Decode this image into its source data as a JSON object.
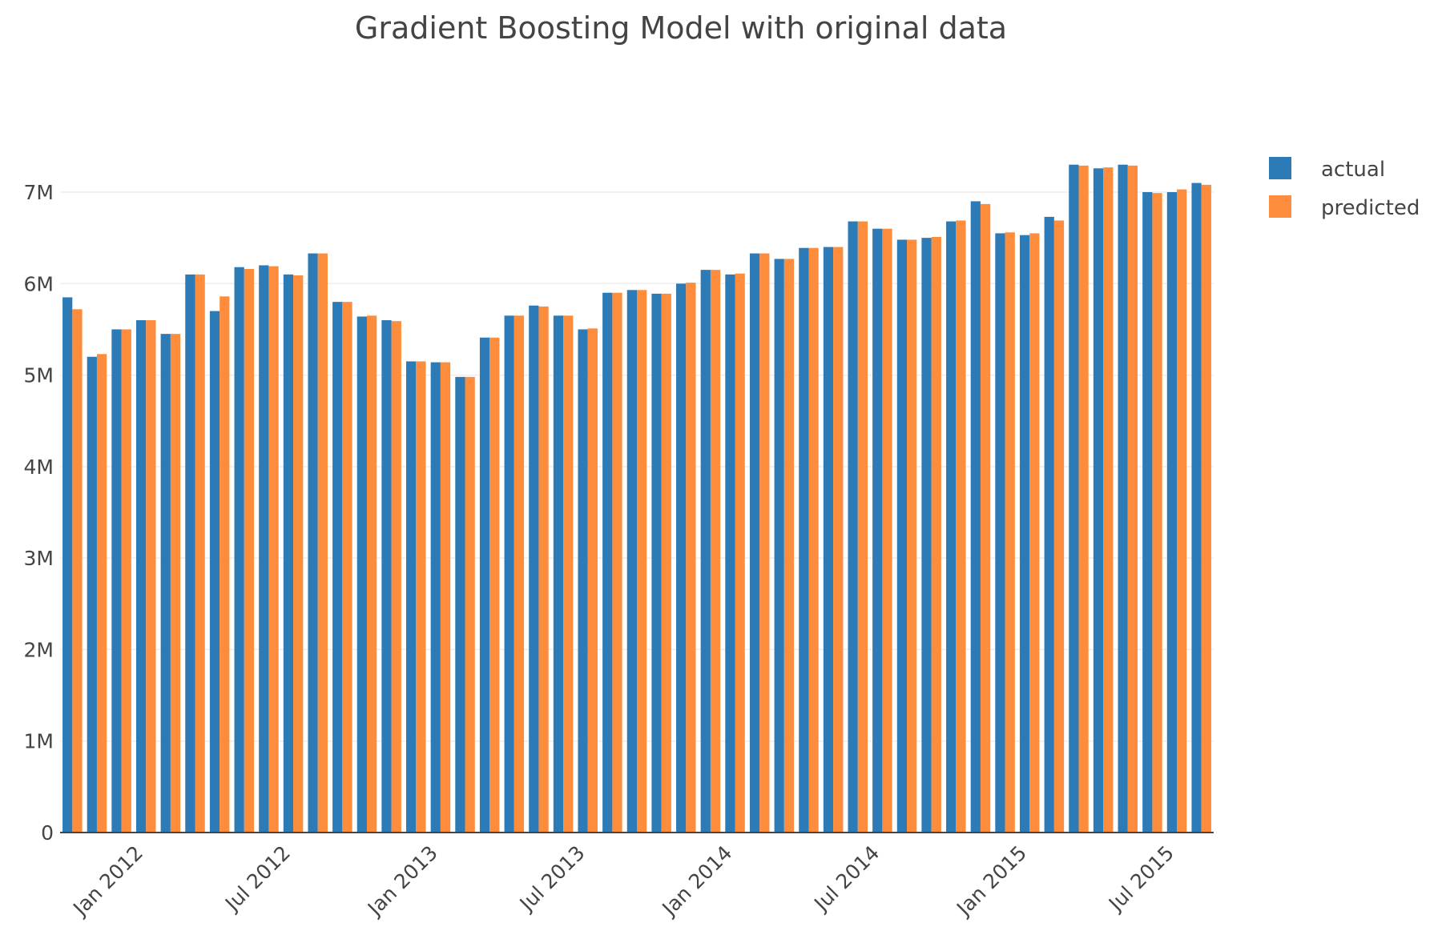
{
  "colors": {
    "actual": "#2c7bb6",
    "predicted": "#fd8d3c",
    "text": "#444444",
    "grid": "#eeeeee",
    "background": "#ffffff"
  },
  "chart_data": {
    "type": "bar",
    "title": "Gradient Boosting Model with original data",
    "xlabel": "",
    "ylabel": "",
    "x_start": "2011-10",
    "x_end": "2015-08",
    "categories": [
      "2011-10",
      "2011-11",
      "2011-12",
      "2012-01",
      "2012-02",
      "2012-03",
      "2012-04",
      "2012-05",
      "2012-06",
      "2012-07",
      "2012-08",
      "2012-09",
      "2012-10",
      "2012-11",
      "2012-12",
      "2013-01",
      "2013-02",
      "2013-03",
      "2013-04",
      "2013-05",
      "2013-06",
      "2013-07",
      "2013-08",
      "2013-09",
      "2013-10",
      "2013-11",
      "2013-12",
      "2014-01",
      "2014-02",
      "2014-03",
      "2014-04",
      "2014-05",
      "2014-06",
      "2014-07",
      "2014-08",
      "2014-09",
      "2014-10",
      "2014-11",
      "2014-12",
      "2015-01",
      "2015-02",
      "2015-03",
      "2015-04",
      "2015-05",
      "2015-06",
      "2015-07",
      "2015-08"
    ],
    "series": [
      {
        "name": "actual",
        "values": [
          5850000,
          5200000,
          5500000,
          5600000,
          5450000,
          6100000,
          5700000,
          6180000,
          6200000,
          6100000,
          6330000,
          5800000,
          5640000,
          5600000,
          5150000,
          5140000,
          4980000,
          5410000,
          5650000,
          5760000,
          5650000,
          5500000,
          5900000,
          5930000,
          5890000,
          6000000,
          6150000,
          6100000,
          6330000,
          6270000,
          6390000,
          6400000,
          6680000,
          6600000,
          6480000,
          6500000,
          6680000,
          6900000,
          6550000,
          6530000,
          6730000,
          7300000,
          7260000,
          7300000,
          7000000,
          7000000,
          7100000
        ]
      },
      {
        "name": "predicted",
        "values": [
          5720000,
          5230000,
          5500000,
          5600000,
          5450000,
          6100000,
          5860000,
          6160000,
          6190000,
          6090000,
          6330000,
          5800000,
          5650000,
          5590000,
          5150000,
          5140000,
          4980000,
          5410000,
          5650000,
          5750000,
          5650000,
          5510000,
          5900000,
          5930000,
          5890000,
          6010000,
          6150000,
          6110000,
          6330000,
          6270000,
          6390000,
          6400000,
          6680000,
          6600000,
          6480000,
          6510000,
          6690000,
          6870000,
          6560000,
          6550000,
          6690000,
          7290000,
          7270000,
          7290000,
          6990000,
          7030000,
          7080000
        ]
      }
    ],
    "x_ticks": [
      {
        "label": "Jan 2012",
        "date": "2012-01-01"
      },
      {
        "label": "Jul 2012",
        "date": "2012-07-01"
      },
      {
        "label": "Jan 2013",
        "date": "2013-01-01"
      },
      {
        "label": "Jul 2013",
        "date": "2013-07-01"
      },
      {
        "label": "Jan 2014",
        "date": "2014-01-01"
      },
      {
        "label": "Jul 2014",
        "date": "2014-07-01"
      },
      {
        "label": "Jan 2015",
        "date": "2015-01-01"
      },
      {
        "label": "Jul 2015",
        "date": "2015-07-01"
      }
    ],
    "y_ticks": [
      {
        "label": "0",
        "value": 0
      },
      {
        "label": "1M",
        "value": 1000000
      },
      {
        "label": "2M",
        "value": 2000000
      },
      {
        "label": "3M",
        "value": 3000000
      },
      {
        "label": "4M",
        "value": 4000000
      },
      {
        "label": "5M",
        "value": 5000000
      },
      {
        "label": "6M",
        "value": 6000000
      },
      {
        "label": "7M",
        "value": 7000000
      }
    ],
    "ylim": [
      0,
      7700000
    ],
    "grid": true,
    "legend_position": "top-right"
  }
}
